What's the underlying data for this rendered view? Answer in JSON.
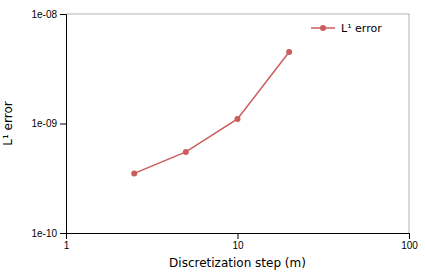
{
  "chart_data": {
    "type": "line",
    "log": true,
    "x": [
      2.5,
      5.0,
      10.0,
      20.0
    ],
    "series": [
      {
        "name": "L¹ error",
        "color": "#cd5c5c",
        "marker": "circle",
        "values": [
          3.5e-10,
          5.5e-10,
          1.1e-09,
          4.5e-09
        ]
      }
    ],
    "xlabel": "Discretization step (m)",
    "ylabel": "L¹ error",
    "xlim": [
      1,
      100
    ],
    "ylim": [
      1e-10,
      1e-08
    ],
    "xticks": [
      1,
      10,
      100
    ],
    "yticks": [
      {
        "value": 1e-10,
        "label": "1e-10"
      },
      {
        "value": 1e-09,
        "label": "1e-09"
      },
      {
        "value": 1e-08,
        "label": "1e-08"
      }
    ],
    "grid": false,
    "legend": "upper right"
  }
}
